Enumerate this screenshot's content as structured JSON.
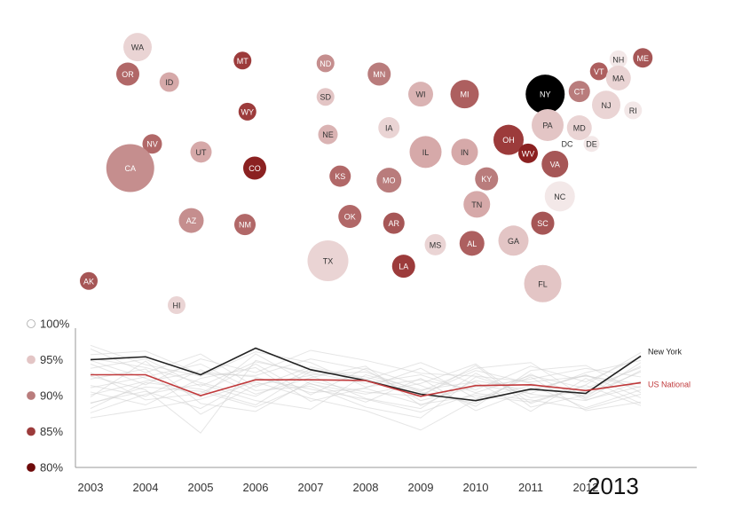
{
  "chart_data": [
    {
      "type": "scatter",
      "description_kind": "bubble-map",
      "color_scale": {
        "domain": [
          80,
          100
        ],
        "colors": [
          "#6e0a0a",
          "#ffffff"
        ]
      },
      "states": [
        {
          "code": "WA",
          "x": 1,
          "y": 0.5,
          "r": 16,
          "color": "#ead4d4"
        },
        {
          "code": "OR",
          "x": 0.8,
          "y": 1.5,
          "r": 13,
          "color": "#b16868"
        },
        {
          "code": "ID",
          "x": 1.65,
          "y": 1.8,
          "r": 11,
          "color": "#d6a9a9"
        },
        {
          "code": "MT",
          "x": 3.15,
          "y": 1,
          "r": 10,
          "color": "#9c3b3b"
        },
        {
          "code": "ND",
          "x": 4.85,
          "y": 1.1,
          "r": 10,
          "color": "#c58e8e"
        },
        {
          "code": "MN",
          "x": 5.95,
          "y": 1.5,
          "r": 13,
          "color": "#b97c7c"
        },
        {
          "code": "WI",
          "x": 6.8,
          "y": 2.25,
          "r": 14,
          "color": "#dab3b3"
        },
        {
          "code": "MI",
          "x": 7.7,
          "y": 2.25,
          "r": 16,
          "color": "#ad5f5f"
        },
        {
          "code": "NY",
          "x": 9.35,
          "y": 2.25,
          "r": 22,
          "color": "#000000"
        },
        {
          "code": "NH",
          "x": 10.85,
          "y": 0.95,
          "r": 10,
          "color": "#f3e8e8"
        },
        {
          "code": "ME",
          "x": 11.35,
          "y": 0.9,
          "r": 11,
          "color": "#a65656"
        },
        {
          "code": "VT",
          "x": 10.45,
          "y": 1.4,
          "r": 10,
          "color": "#ad5f5f"
        },
        {
          "code": "MA",
          "x": 10.85,
          "y": 1.65,
          "r": 14,
          "color": "#ead4d4"
        },
        {
          "code": "CT",
          "x": 10.05,
          "y": 2.15,
          "r": 12,
          "color": "#b97c7c"
        },
        {
          "code": "NJ",
          "x": 10.6,
          "y": 2.65,
          "r": 16,
          "color": "#ead4d4"
        },
        {
          "code": "RI",
          "x": 11.15,
          "y": 2.85,
          "r": 10,
          "color": "#f3e8e8"
        },
        {
          "code": "SD",
          "x": 4.85,
          "y": 2.35,
          "r": 10,
          "color": "#e3c5c5"
        },
        {
          "code": "WY",
          "x": 3.25,
          "y": 2.9,
          "r": 10,
          "color": "#9c3b3b"
        },
        {
          "code": "IA",
          "x": 6.15,
          "y": 3.5,
          "r": 12,
          "color": "#ead4d4"
        },
        {
          "code": "NE",
          "x": 4.9,
          "y": 3.75,
          "r": 11,
          "color": "#dab3b3"
        },
        {
          "code": "PA",
          "x": 9.4,
          "y": 3.4,
          "r": 18,
          "color": "#e3c5c5"
        },
        {
          "code": "MD",
          "x": 10.05,
          "y": 3.5,
          "r": 14,
          "color": "#ead4d4"
        },
        {
          "code": "NV",
          "x": 1.3,
          "y": 4.1,
          "r": 11,
          "color": "#b16868"
        },
        {
          "code": "UT",
          "x": 2.3,
          "y": 4.4,
          "r": 12,
          "color": "#d6a9a9"
        },
        {
          "code": "CA",
          "x": 0.85,
          "y": 5,
          "r": 27,
          "color": "#c58e8e"
        },
        {
          "code": "CO",
          "x": 3.4,
          "y": 5,
          "r": 13,
          "color": "#8b2121"
        },
        {
          "code": "IL",
          "x": 6.9,
          "y": 4.4,
          "r": 18,
          "color": "#d6a9a9"
        },
        {
          "code": "IN",
          "x": 7.7,
          "y": 4.4,
          "r": 15,
          "color": "#d6a9a9"
        },
        {
          "code": "OH",
          "x": 8.6,
          "y": 3.95,
          "r": 17,
          "color": "#9c3b3b"
        },
        {
          "code": "WV",
          "x": 9,
          "y": 4.45,
          "r": 11,
          "color": "#8b2121"
        },
        {
          "code": "VA",
          "x": 9.55,
          "y": 4.85,
          "r": 15,
          "color": "#a65656"
        },
        {
          "code": "DC",
          "x": 9.8,
          "y": 4.1,
          "r": 9,
          "color": "#ffffff"
        },
        {
          "code": "DE",
          "x": 10.3,
          "y": 4.1,
          "r": 9,
          "color": "#f3e8e8"
        },
        {
          "code": "KS",
          "x": 5.15,
          "y": 5.3,
          "r": 12,
          "color": "#b16868"
        },
        {
          "code": "MO",
          "x": 6.15,
          "y": 5.45,
          "r": 14,
          "color": "#b97c7c"
        },
        {
          "code": "KY",
          "x": 8.15,
          "y": 5.4,
          "r": 13,
          "color": "#b97c7c"
        },
        {
          "code": "NC",
          "x": 9.65,
          "y": 6.05,
          "r": 17,
          "color": "#f3e8e8"
        },
        {
          "code": "AZ",
          "x": 2.1,
          "y": 6.95,
          "r": 14,
          "color": "#c58e8e"
        },
        {
          "code": "NM",
          "x": 3.2,
          "y": 7.1,
          "r": 12,
          "color": "#b16868"
        },
        {
          "code": "OK",
          "x": 5.35,
          "y": 6.8,
          "r": 13,
          "color": "#b16868"
        },
        {
          "code": "AR",
          "x": 6.25,
          "y": 7.05,
          "r": 12,
          "color": "#a65656"
        },
        {
          "code": "TN",
          "x": 7.95,
          "y": 6.35,
          "r": 15,
          "color": "#d6a9a9"
        },
        {
          "code": "SC",
          "x": 9.3,
          "y": 7.05,
          "r": 13,
          "color": "#a65656"
        },
        {
          "code": "TX",
          "x": 4.9,
          "y": 8.45,
          "r": 23,
          "color": "#ead4d4"
        },
        {
          "code": "MS",
          "x": 7.1,
          "y": 7.85,
          "r": 12,
          "color": "#ead4d4"
        },
        {
          "code": "AL",
          "x": 7.85,
          "y": 7.8,
          "r": 14,
          "color": "#ad5f5f"
        },
        {
          "code": "GA",
          "x": 8.7,
          "y": 7.7,
          "r": 17,
          "color": "#e3c5c5"
        },
        {
          "code": "LA",
          "x": 6.45,
          "y": 8.65,
          "r": 13,
          "color": "#9c3b3b"
        },
        {
          "code": "FL",
          "x": 9.3,
          "y": 9.3,
          "r": 21,
          "color": "#e3c5c5"
        },
        {
          "code": "AK",
          "x": 0,
          "y": 9.2,
          "r": 10,
          "color": "#a65656"
        },
        {
          "code": "HI",
          "x": 1.8,
          "y": 10.1,
          "r": 10,
          "color": "#ead4d4"
        }
      ]
    },
    {
      "type": "line",
      "x": [
        2003,
        2004,
        2005,
        2006,
        2007,
        2008,
        2009,
        2010,
        2011,
        2012,
        2013
      ],
      "x_tick_labels": [
        "2003",
        "2004",
        "2005",
        "2006",
        "2007",
        "2008",
        "2009",
        "2010",
        "2011",
        "2012"
      ],
      "current_year_label": "2013",
      "ylim": [
        80,
        100
      ],
      "y_ticks": [
        {
          "value": 100,
          "label": "100%",
          "swatch": "#ffffff"
        },
        {
          "value": 95,
          "label": "95%",
          "swatch": "#e3c5c5"
        },
        {
          "value": 90,
          "label": "90%",
          "swatch": "#b97c7c"
        },
        {
          "value": 85,
          "label": "85%",
          "swatch": "#9c3b3b"
        },
        {
          "value": 80,
          "label": "80%",
          "swatch": "#6e0a0a"
        }
      ],
      "highlight_series": [
        {
          "name": "New York",
          "color": "#222222",
          "values": [
            95.0,
            95.4,
            92.9,
            96.6,
            93.6,
            92.1,
            90.2,
            89.3,
            90.9,
            90.3,
            95.5
          ]
        },
        {
          "name": "US National",
          "color": "#c0393b",
          "values": [
            92.9,
            92.9,
            90.0,
            92.2,
            92.2,
            92.1,
            89.9,
            91.4,
            91.5,
            90.7,
            91.8
          ]
        }
      ],
      "background_series_color": "#d0d0d0",
      "background_series": [
        [
          96.5,
          93.2,
          95.8,
          91.2,
          94.0,
          92.3,
          90.1,
          93.5,
          91.7,
          89.8,
          94.6
        ],
        [
          89.0,
          90.6,
          88.2,
          92.4,
          90.9,
          89.5,
          87.7,
          90.3,
          89.4,
          88.1,
          90.2
        ],
        [
          93.8,
          95.1,
          91.3,
          94.7,
          93.2,
          91.7,
          92.9,
          90.4,
          92.8,
          91.0,
          93.9
        ],
        [
          91.4,
          89.9,
          93.6,
          90.2,
          92.5,
          94.1,
          88.6,
          92.1,
          90.7,
          92.9,
          89.7
        ],
        [
          94.9,
          92.4,
          89.8,
          95.8,
          91.6,
          90.2,
          91.7,
          94.4,
          88.9,
          91.5,
          96.0
        ],
        [
          88.2,
          91.8,
          90.9,
          88.7,
          93.4,
          92.6,
          90.5,
          88.9,
          93.0,
          89.4,
          91.3
        ],
        [
          95.7,
          96.2,
          93.0,
          92.8,
          95.1,
          93.6,
          89.3,
          91.2,
          92.3,
          93.8,
          92.6
        ],
        [
          90.5,
          88.7,
          92.4,
          93.9,
          89.2,
          91.1,
          93.8,
          89.6,
          91.4,
          88.3,
          90.8
        ],
        [
          92.3,
          93.7,
          87.4,
          91.5,
          92.8,
          89.6,
          88.2,
          93.1,
          89.7,
          90.6,
          94.1
        ],
        [
          87.6,
          90.2,
          91.6,
          89.3,
          88.1,
          92.9,
          90.8,
          91.9,
          87.8,
          92.4,
          88.9
        ],
        [
          97.0,
          94.3,
          92.7,
          96.1,
          94.6,
          91.2,
          92.2,
          90.8,
          94.1,
          91.9,
          95.4
        ],
        [
          91.1,
          92.6,
          94.4,
          90.7,
          91.3,
          88.4,
          86.9,
          92.6,
          90.2,
          89.3,
          92.0
        ],
        [
          93.2,
          89.4,
          90.3,
          94.4,
          90.1,
          93.8,
          91.4,
          88.5,
          93.5,
          94.2,
          90.4
        ],
        [
          89.8,
          94.8,
          88.9,
          87.8,
          92.0,
          90.5,
          89.9,
          94.2,
          88.4,
          90.1,
          93.3
        ],
        [
          94.4,
          91.5,
          95.1,
          93.2,
          96.3,
          94.9,
          93.1,
          92.7,
          91.9,
          92.7,
          91.6
        ],
        [
          86.9,
          88.1,
          89.5,
          91.9,
          89.6,
          87.9,
          85.2,
          89.4,
          92.6,
          87.9,
          89.1
        ],
        [
          95.2,
          93.9,
          91.8,
          89.9,
          93.7,
          92.2,
          94.6,
          91.5,
          90.3,
          93.2,
          94.9
        ],
        [
          90.1,
          92.0,
          93.3,
          92.6,
          90.4,
          91.0,
          88.8,
          90.0,
          89.1,
          91.4,
          88.6
        ],
        [
          92.7,
          90.8,
          84.8,
          94.9,
          92.9,
          93.3,
          90.6,
          93.8,
          94.6,
          89.6,
          93.5
        ],
        [
          88.9,
          91.2,
          90.6,
          88.4,
          91.7,
          89.1,
          92.4,
          87.9,
          90.8,
          92.8,
          91.1
        ]
      ]
    }
  ]
}
